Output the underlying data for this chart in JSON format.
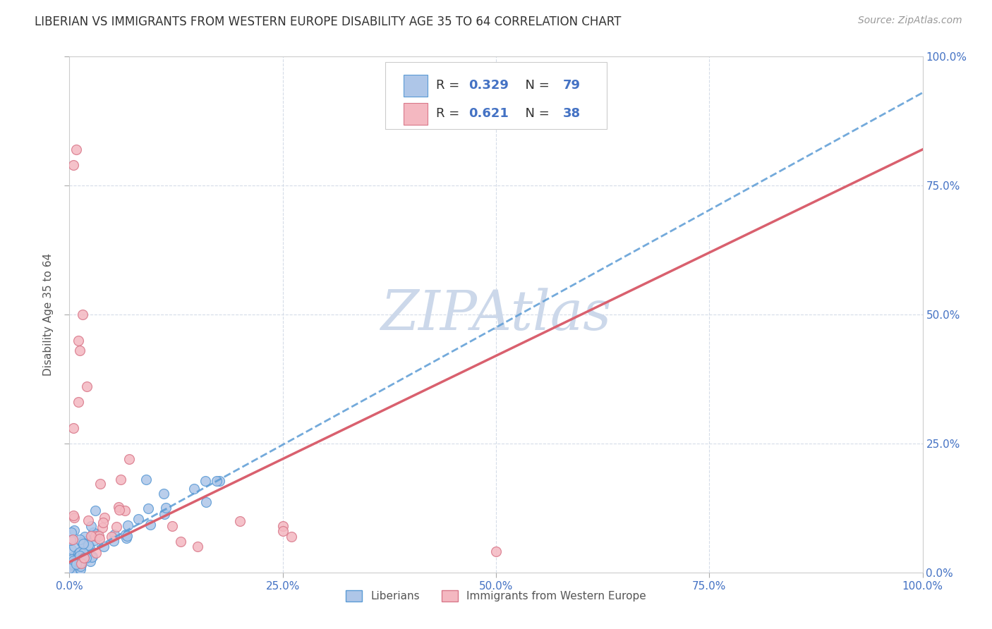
{
  "title": "LIBERIAN VS IMMIGRANTS FROM WESTERN EUROPE DISABILITY AGE 35 TO 64 CORRELATION CHART",
  "source": "Source: ZipAtlas.com",
  "ylabel": "Disability Age 35 to 64",
  "xlim": [
    0.0,
    1.0
  ],
  "ylim": [
    0.0,
    1.0
  ],
  "xtick_vals": [
    0.0,
    0.25,
    0.5,
    0.75,
    1.0
  ],
  "xtick_labels": [
    "0.0%",
    "25.0%",
    "50.0%",
    "75.0%",
    "100.0%"
  ],
  "ytick_vals": [
    0.0,
    0.25,
    0.5,
    0.75,
    1.0
  ],
  "right_ytick_labels": [
    "0.0%",
    "25.0%",
    "50.0%",
    "75.0%",
    "100.0%"
  ],
  "liberian_color": "#aec6e8",
  "liberian_edge_color": "#5b9bd5",
  "immigrant_color": "#f4b8c1",
  "immigrant_edge_color": "#d9788a",
  "line_liberian_color": "#5b9bd5",
  "line_immigrant_color": "#d9606e",
  "R_liberian": 0.329,
  "N_liberian": 79,
  "R_immigrant": 0.621,
  "N_immigrant": 38,
  "watermark": "ZIPAtlas",
  "watermark_color": "#ccd8ea",
  "legend1_label": "Liberians",
  "legend2_label": "Immigrants from Western Europe",
  "lib_line_x0": 0.0,
  "lib_line_y0": 0.02,
  "lib_line_x1": 1.0,
  "lib_line_y1": 0.93,
  "imm_line_x0": 0.0,
  "imm_line_y0": 0.02,
  "imm_line_x1": 1.0,
  "imm_line_y1": 0.82,
  "scatter_point_size": 100,
  "grid_color": "#d5dce8",
  "grid_linestyle": "--",
  "grid_linewidth": 0.8,
  "tick_color": "#4472c4",
  "tick_fontsize": 11,
  "ylabel_fontsize": 11,
  "title_fontsize": 12,
  "source_fontsize": 10
}
